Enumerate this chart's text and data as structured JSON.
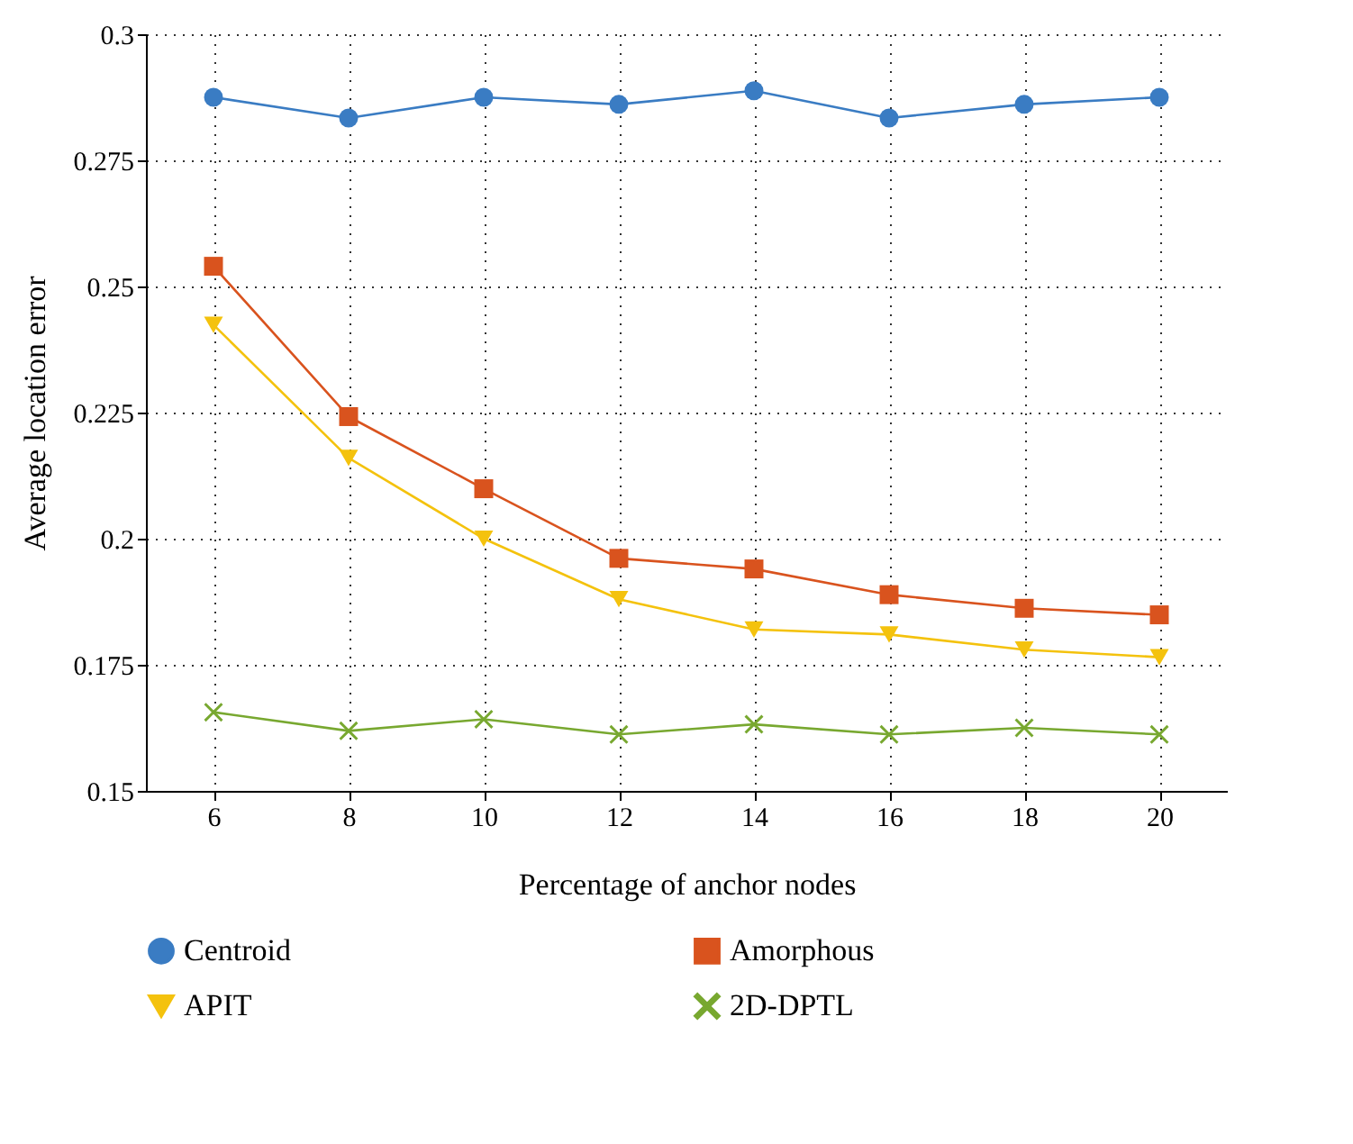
{
  "chart_data": {
    "type": "line",
    "xlabel": "Percentage of anchor nodes",
    "ylabel": "Average location error",
    "x": [
      6,
      8,
      10,
      12,
      14,
      16,
      18,
      20
    ],
    "xlim": [
      5,
      21
    ],
    "xticks": [
      6,
      8,
      10,
      12,
      14,
      16,
      18,
      20
    ],
    "ylim": [
      0.15,
      0.3
    ],
    "yticks": [
      0.15,
      0.175,
      0.2,
      0.225,
      0.25,
      0.275,
      0.3
    ],
    "grid": true,
    "legend": "bottom",
    "line_style": "solid",
    "series": [
      {
        "name": "Centroid",
        "color": "#3a7cc3",
        "marker": "circle",
        "values": [
          0.2875,
          0.2834,
          0.2875,
          0.2861,
          0.2888,
          0.2834,
          0.2861,
          0.2875
        ]
      },
      {
        "name": "Amorphous",
        "color": "#d9531e",
        "marker": "square",
        "values": [
          0.254,
          0.2242,
          0.2099,
          0.1961,
          0.194,
          0.1889,
          0.1862,
          0.1849
        ]
      },
      {
        "name": "APIT",
        "color": "#f4c20d",
        "marker": "triangle",
        "values": [
          0.2424,
          0.216,
          0.2,
          0.188,
          0.182,
          0.181,
          0.178,
          0.1765
        ]
      },
      {
        "name": "2D-DPTL",
        "color": "#78a830",
        "marker": "cross",
        "values": [
          0.1656,
          0.1619,
          0.1642,
          0.1612,
          0.1632,
          0.1612,
          0.1625,
          0.1612
        ]
      }
    ]
  }
}
